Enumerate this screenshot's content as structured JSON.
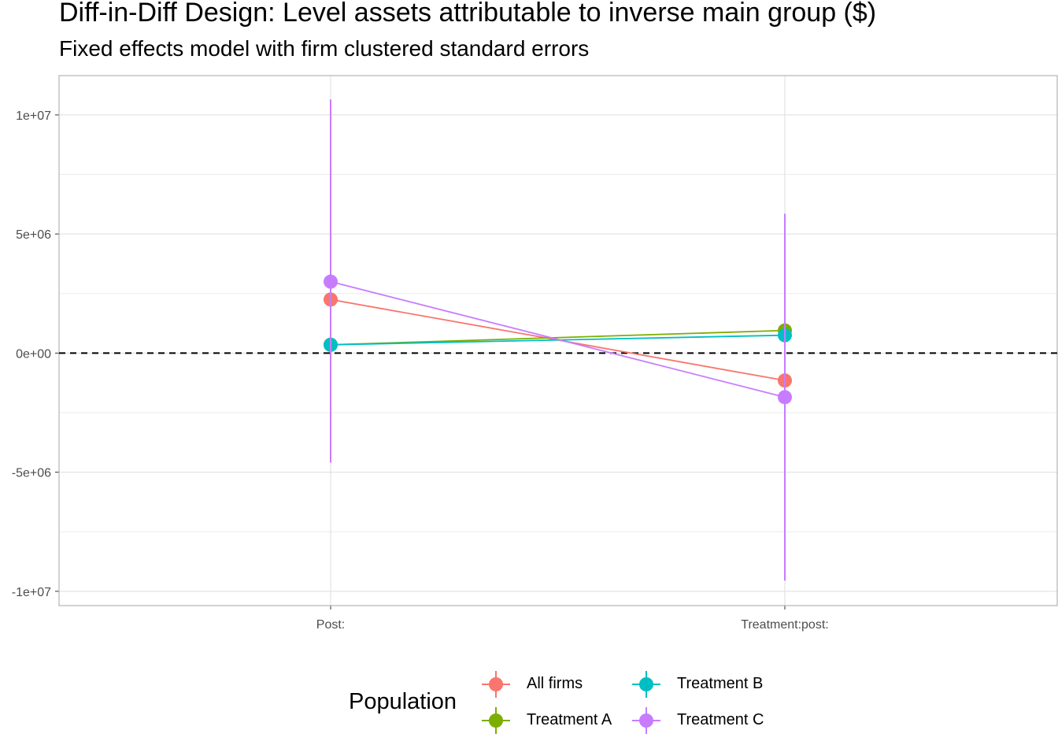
{
  "title": "Diff-in-Diff Design: Level assets attributable to inverse main group  ($)",
  "subtitle": "Fixed effects model with firm clustered standard errors",
  "chart_data": {
    "type": "line",
    "x_categories": [
      "Post:",
      "Treatment:post:"
    ],
    "y_ticks": [
      {
        "value": 10000000,
        "label": "1e+07"
      },
      {
        "value": 5000000,
        "label": "5e+06"
      },
      {
        "value": 0,
        "label": "0e+00"
      },
      {
        "value": -5000000,
        "label": "-5e+06"
      },
      {
        "value": -10000000,
        "label": "-1e+07"
      }
    ],
    "ylim": [
      -10600000,
      11650000
    ],
    "reference_line": {
      "value": 0,
      "style": "dashed"
    },
    "grid": true,
    "legend": {
      "title": "Population",
      "position": "bottom"
    },
    "series": [
      {
        "name": "All firms",
        "color": "#F8766D",
        "points": [
          {
            "x": "Post:",
            "y": 2250000,
            "lo": 2250000,
            "hi": 2250000
          },
          {
            "x": "Treatment:post:",
            "y": -1150000,
            "lo": -1150000,
            "hi": -1150000
          }
        ]
      },
      {
        "name": "Treatment A",
        "color": "#7CAE00",
        "points": [
          {
            "x": "Post:",
            "y": 350000,
            "lo": 350000,
            "hi": 350000
          },
          {
            "x": "Treatment:post:",
            "y": 950000,
            "lo": 950000,
            "hi": 950000
          }
        ]
      },
      {
        "name": "Treatment B",
        "color": "#00BFC4",
        "points": [
          {
            "x": "Post:",
            "y": 350000,
            "lo": 350000,
            "hi": 350000
          },
          {
            "x": "Treatment:post:",
            "y": 750000,
            "lo": 750000,
            "hi": 750000
          }
        ]
      },
      {
        "name": "Treatment C",
        "color": "#C77CFF",
        "points": [
          {
            "x": "Post:",
            "y": 3000000,
            "lo": -4600000,
            "hi": 10650000
          },
          {
            "x": "Treatment:post:",
            "y": -1850000,
            "lo": -9550000,
            "hi": 5850000
          }
        ]
      }
    ]
  }
}
